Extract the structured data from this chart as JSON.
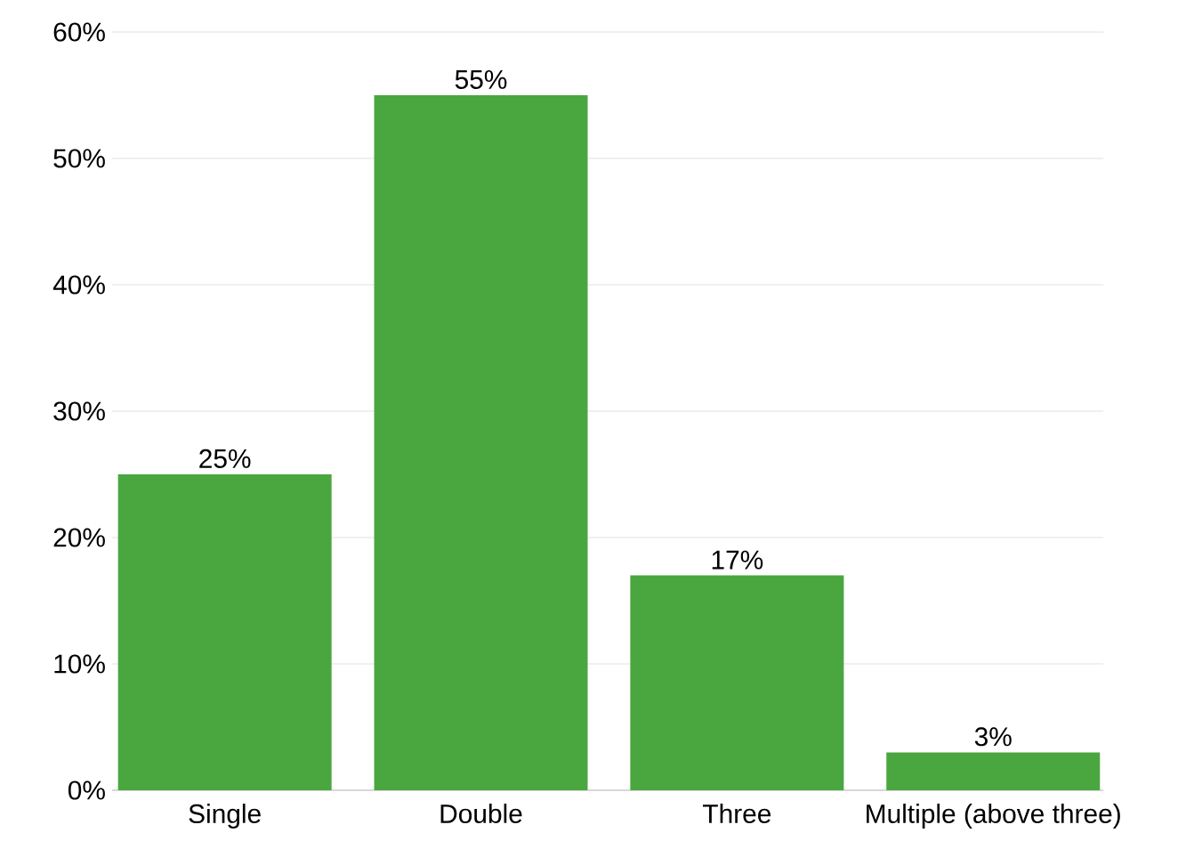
{
  "chart_data": {
    "type": "bar",
    "categories": [
      "Single",
      "Double",
      "Three",
      "Multiple (above three)"
    ],
    "values": [
      25,
      55,
      17,
      3
    ],
    "value_labels": [
      "25%",
      "55%",
      "17%",
      "3%"
    ],
    "color": "#4aa63f",
    "ylim": [
      0,
      60
    ],
    "yticks": [
      {
        "value": 0,
        "label": "0%"
      },
      {
        "value": 10,
        "label": "10%"
      },
      {
        "value": 20,
        "label": "20%"
      },
      {
        "value": 30,
        "label": "30%"
      },
      {
        "value": 40,
        "label": "40%"
      },
      {
        "value": 50,
        "label": "50%"
      },
      {
        "value": 60,
        "label": "60%"
      }
    ],
    "grid": "y"
  }
}
